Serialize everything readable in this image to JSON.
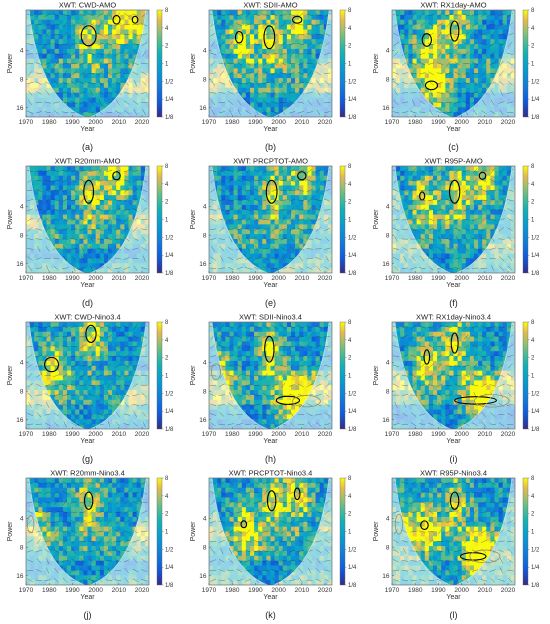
{
  "figure": {
    "panels": [
      {
        "letter": "(a)",
        "title": "XWT: CWD-AMO"
      },
      {
        "letter": "(b)",
        "title": "XWT: SDII-AMO"
      },
      {
        "letter": "(c)",
        "title": "XWT: RX1day-AMO"
      },
      {
        "letter": "(d)",
        "title": "XWT: R20mm-AMO"
      },
      {
        "letter": "(e)",
        "title": "XWT: PRCPTOT-AMO"
      },
      {
        "letter": "(f)",
        "title": "XWT: R95P-AMO"
      },
      {
        "letter": "(g)",
        "title": "XWT: CWD-Nino3.4"
      },
      {
        "letter": "(h)",
        "title": "XWT: SDII-Nino3.4"
      },
      {
        "letter": "(i)",
        "title": "XWT: RX1day-Nino3.4"
      },
      {
        "letter": "(j)",
        "title": "XWT: R20mm-Nino3.4"
      },
      {
        "letter": "(k)",
        "title": "XWT: PRCPTOT-Nino3.4"
      },
      {
        "letter": "(l)",
        "title": "XWT: R95P-Nino3.4"
      }
    ]
  },
  "chart_data": [
    {
      "type": "heatmap",
      "title": "XWT: CWD-AMO",
      "xlabel": "Year",
      "ylabel": "Power",
      "xlim": [
        1970,
        2023
      ],
      "ylim": [
        1.5,
        20
      ],
      "yscale": "log2",
      "x_ticks": [
        1970,
        1980,
        1990,
        2000,
        2010,
        2020
      ],
      "y_ticks": [
        4,
        8,
        16
      ],
      "colorbar_ticks": [
        "8",
        "4",
        "2",
        "1",
        "1/2",
        "1/4",
        "1/8"
      ],
      "significant_regions": [
        {
          "year": 1997,
          "period": 2.8,
          "dyear": 3.2,
          "dperiod": 0.35,
          "in_coi": true
        },
        {
          "year": 2009,
          "period": 1.9,
          "dyear": 1.5,
          "dperiod": 0.15,
          "in_coi": true
        },
        {
          "year": 2017,
          "period": 1.9,
          "dyear": 1.2,
          "dperiod": 0.12,
          "in_coi": true
        }
      ]
    },
    {
      "type": "heatmap",
      "title": "XWT: SDII-AMO",
      "xlabel": "Year",
      "ylabel": "Power",
      "xlim": [
        1970,
        2023
      ],
      "ylim": [
        1.5,
        20
      ],
      "yscale": "log2",
      "x_ticks": [
        1970,
        1980,
        1990,
        2000,
        2010,
        2020
      ],
      "y_ticks": [
        4,
        8,
        16
      ],
      "colorbar_ticks": [
        "8",
        "4",
        "2",
        "1",
        "1/2",
        "1/4",
        "1/8"
      ],
      "significant_regions": [
        {
          "year": 1983,
          "period": 2.9,
          "dyear": 1.6,
          "dperiod": 0.2,
          "in_coi": true
        },
        {
          "year": 1996,
          "period": 2.9,
          "dyear": 2.3,
          "dperiod": 0.4,
          "in_coi": true
        },
        {
          "year": 2008,
          "period": 1.9,
          "dyear": 2.0,
          "dperiod": 0.12,
          "in_coi": true
        }
      ]
    },
    {
      "type": "heatmap",
      "title": "XWT: RX1day-AMO",
      "xlabel": "Year",
      "ylabel": "Power",
      "xlim": [
        1970,
        2023
      ],
      "ylim": [
        1.5,
        20
      ],
      "yscale": "log2",
      "x_ticks": [
        1970,
        1980,
        1990,
        2000,
        2010,
        2020
      ],
      "y_ticks": [
        4,
        8,
        16
      ],
      "colorbar_ticks": [
        "8",
        "4",
        "2",
        "1",
        "1/2",
        "1/4",
        "1/8"
      ],
      "significant_regions": [
        {
          "year": 1985,
          "period": 3.1,
          "dyear": 2.0,
          "dperiod": 0.22,
          "in_coi": true
        },
        {
          "year": 1997,
          "period": 2.5,
          "dyear": 1.8,
          "dperiod": 0.35,
          "in_coi": true
        },
        {
          "year": 1987,
          "period": 9.3,
          "dyear": 2.6,
          "dperiod": 0.15,
          "in_coi": true
        }
      ]
    },
    {
      "type": "heatmap",
      "title": "XWT: R20mm-AMO",
      "xlabel": "Year",
      "ylabel": "Power",
      "xlim": [
        1970,
        2023
      ],
      "ylim": [
        1.5,
        20
      ],
      "yscale": "log2",
      "x_ticks": [
        1970,
        1980,
        1990,
        2000,
        2010,
        2020
      ],
      "y_ticks": [
        4,
        8,
        16
      ],
      "colorbar_ticks": [
        "8",
        "4",
        "2",
        "1",
        "1/2",
        "1/4",
        "1/8"
      ],
      "significant_regions": [
        {
          "year": 1997,
          "period": 2.8,
          "dyear": 2.1,
          "dperiod": 0.4,
          "in_coi": true
        },
        {
          "year": 2009,
          "period": 1.9,
          "dyear": 1.6,
          "dperiod": 0.14,
          "in_coi": true
        }
      ]
    },
    {
      "type": "heatmap",
      "title": "XWT: PRCPTOT-AMO",
      "xlabel": "Year",
      "ylabel": "Power",
      "xlim": [
        1970,
        2023
      ],
      "ylim": [
        1.5,
        20
      ],
      "yscale": "log2",
      "x_ticks": [
        1970,
        1980,
        1990,
        2000,
        2010,
        2020
      ],
      "y_ticks": [
        4,
        8,
        16
      ],
      "colorbar_ticks": [
        "8",
        "4",
        "2",
        "1",
        "1/2",
        "1/4",
        "1/8"
      ],
      "significant_regions": [
        {
          "year": 1997,
          "period": 2.8,
          "dyear": 2.3,
          "dperiod": 0.4,
          "in_coi": true
        },
        {
          "year": 2010,
          "period": 1.9,
          "dyear": 1.8,
          "dperiod": 0.14,
          "in_coi": true
        }
      ]
    },
    {
      "type": "heatmap",
      "title": "XWT: R95P-AMO",
      "xlabel": "Year",
      "ylabel": "Power",
      "xlim": [
        1970,
        2023
      ],
      "ylim": [
        1.5,
        20
      ],
      "yscale": "log2",
      "x_ticks": [
        1970,
        1980,
        1990,
        2000,
        2010,
        2020
      ],
      "y_ticks": [
        4,
        8,
        16
      ],
      "colorbar_ticks": [
        "8",
        "4",
        "2",
        "1",
        "1/2",
        "1/4",
        "1/8"
      ],
      "significant_regions": [
        {
          "year": 1983,
          "period": 3.1,
          "dyear": 1.1,
          "dperiod": 0.14,
          "in_coi": true
        },
        {
          "year": 1997,
          "period": 2.8,
          "dyear": 2.2,
          "dperiod": 0.4,
          "in_coi": true
        },
        {
          "year": 2009,
          "period": 1.9,
          "dyear": 1.4,
          "dperiod": 0.12,
          "in_coi": true
        }
      ]
    },
    {
      "type": "heatmap",
      "title": "XWT: CWD-Nino3.4",
      "xlabel": "Year",
      "ylabel": "Power",
      "xlim": [
        1970,
        2023
      ],
      "ylim": [
        1.5,
        20
      ],
      "yscale": "log2",
      "x_ticks": [
        1970,
        1980,
        1990,
        2000,
        2010,
        2020
      ],
      "y_ticks": [
        4,
        8,
        16
      ],
      "colorbar_ticks": [
        "8",
        "4",
        "2",
        "1",
        "1/2",
        "1/4",
        "1/8"
      ],
      "significant_regions": [
        {
          "year": 1981,
          "period": 4.2,
          "dyear": 3.0,
          "dperiod": 0.25,
          "in_coi": true
        },
        {
          "year": 1998,
          "period": 2.0,
          "dyear": 2.2,
          "dperiod": 0.3,
          "in_coi": true
        }
      ]
    },
    {
      "type": "heatmap",
      "title": "XWT: SDII-Nino3.4",
      "xlabel": "Year",
      "ylabel": "Power",
      "xlim": [
        1970,
        2023
      ],
      "ylim": [
        1.5,
        20
      ],
      "yscale": "log2",
      "x_ticks": [
        1970,
        1980,
        1990,
        2000,
        2010,
        2020
      ],
      "y_ticks": [
        4,
        8,
        16
      ],
      "colorbar_ticks": [
        "8",
        "4",
        "2",
        "1",
        "1/2",
        "1/4",
        "1/8"
      ],
      "significant_regions": [
        {
          "year": 1996,
          "period": 2.9,
          "dyear": 2.0,
          "dperiod": 0.45,
          "in_coi": true
        },
        {
          "year": 2004,
          "period": 10.0,
          "dyear": 5.0,
          "dperiod": 0.14,
          "in_coi": true
        },
        {
          "year": 1973,
          "period": 5.0,
          "dyear": 2.0,
          "dperiod": 0.28,
          "in_coi": false
        },
        {
          "year": 2012,
          "period": 10.2,
          "dyear": 6.0,
          "dperiod": 0.2,
          "in_coi": false
        }
      ]
    },
    {
      "type": "heatmap",
      "title": "XWT: RX1day-Nino3.4",
      "xlabel": "Year",
      "ylabel": "Power",
      "xlim": [
        1970,
        2023
      ],
      "ylim": [
        1.5,
        20
      ],
      "yscale": "log2",
      "x_ticks": [
        1970,
        1980,
        1990,
        2000,
        2010,
        2020
      ],
      "y_ticks": [
        4,
        8,
        16
      ],
      "colorbar_ticks": [
        "8",
        "4",
        "2",
        "1",
        "1/2",
        "1/4",
        "1/8"
      ],
      "significant_regions": [
        {
          "year": 1985,
          "period": 3.5,
          "dyear": 1.2,
          "dperiod": 0.25,
          "in_coi": true
        },
        {
          "year": 1997,
          "period": 2.5,
          "dyear": 1.5,
          "dperiod": 0.35,
          "in_coi": true
        },
        {
          "year": 2006,
          "period": 10.0,
          "dyear": 9.0,
          "dperiod": 0.13,
          "in_coi": true
        },
        {
          "year": 2013,
          "period": 10.1,
          "dyear": 7.5,
          "dperiod": 0.22,
          "in_coi": false
        }
      ]
    },
    {
      "type": "heatmap",
      "title": "XWT: R20mm-Nino3.4",
      "xlabel": "Year",
      "ylabel": "Power",
      "xlim": [
        1970,
        2023
      ],
      "ylim": [
        1.5,
        20
      ],
      "yscale": "log2",
      "x_ticks": [
        1970,
        1980,
        1990,
        2000,
        2010,
        2020
      ],
      "y_ticks": [
        4,
        8,
        16
      ],
      "colorbar_ticks": [
        "8",
        "4",
        "2",
        "1",
        "1/2",
        "1/4",
        "1/8"
      ],
      "significant_regions": [
        {
          "year": 1997,
          "period": 2.6,
          "dyear": 1.8,
          "dperiod": 0.3,
          "in_coi": true
        },
        {
          "year": 1972,
          "period": 4.6,
          "dyear": 1.4,
          "dperiod": 0.3,
          "in_coi": false
        }
      ]
    },
    {
      "type": "heatmap",
      "title": "XWT: PRCPTOT-Nino3.4",
      "xlabel": "Year",
      "ylabel": "Power",
      "xlim": [
        1970,
        2023
      ],
      "ylim": [
        1.5,
        20
      ],
      "yscale": "log2",
      "x_ticks": [
        1970,
        1980,
        1990,
        2000,
        2010,
        2020
      ],
      "y_ticks": [
        4,
        8,
        16
      ],
      "colorbar_ticks": [
        "8",
        "4",
        "2",
        "1",
        "1/2",
        "1/4",
        "1/8"
      ],
      "significant_regions": [
        {
          "year": 1985,
          "period": 4.6,
          "dyear": 1.2,
          "dperiod": 0.12,
          "in_coi": true
        },
        {
          "year": 1997,
          "period": 2.6,
          "dyear": 1.8,
          "dperiod": 0.35,
          "in_coi": true
        },
        {
          "year": 2008,
          "period": 2.2,
          "dyear": 1.2,
          "dperiod": 0.2,
          "in_coi": true
        }
      ]
    },
    {
      "type": "heatmap",
      "title": "XWT: R95P-Nino3.4",
      "xlabel": "Year",
      "ylabel": "Power",
      "xlim": [
        1970,
        2023
      ],
      "ylim": [
        1.5,
        20
      ],
      "yscale": "log2",
      "x_ticks": [
        1970,
        1980,
        1990,
        2000,
        2010,
        2020
      ],
      "y_ticks": [
        4,
        8,
        16
      ],
      "colorbar_ticks": [
        "8",
        "4",
        "2",
        "1",
        "1/2",
        "1/4",
        "1/8"
      ],
      "significant_regions": [
        {
          "year": 1984,
          "period": 4.7,
          "dyear": 1.6,
          "dperiod": 0.15,
          "in_coi": true
        },
        {
          "year": 1997,
          "period": 2.6,
          "dyear": 1.8,
          "dperiod": 0.3,
          "in_coi": true
        },
        {
          "year": 2005,
          "period": 10.0,
          "dyear": 5.5,
          "dperiod": 0.13,
          "in_coi": true
        },
        {
          "year": 1973,
          "period": 4.6,
          "dyear": 1.6,
          "dperiod": 0.35,
          "in_coi": false
        },
        {
          "year": 2010,
          "period": 10.0,
          "dyear": 6.5,
          "dperiod": 0.22,
          "in_coi": false
        }
      ]
    }
  ]
}
